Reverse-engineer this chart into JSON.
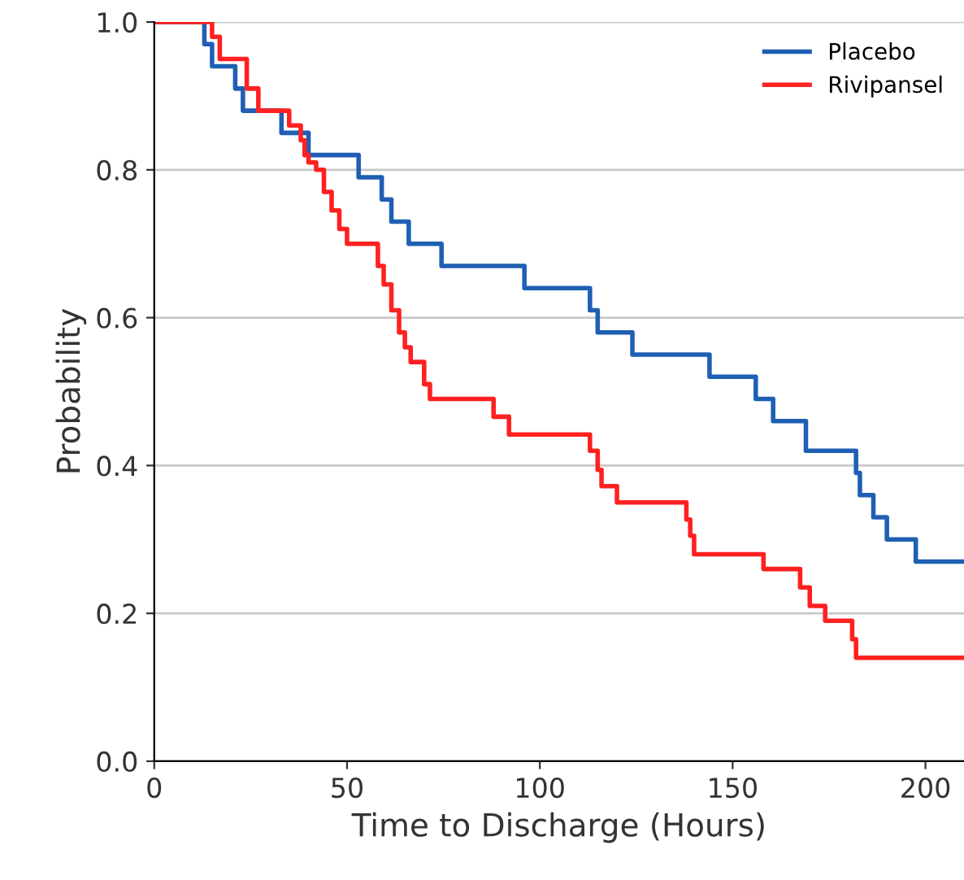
{
  "chart_data": {
    "type": "step",
    "xlabel": "Time to Discharge (Hours)",
    "ylabel": "Probability",
    "xlim": [
      0,
      210
    ],
    "xticks": [
      0,
      50,
      100,
      150,
      200
    ],
    "ylim": [
      0,
      1
    ],
    "yticks": [
      {
        "value": 0,
        "label": "0.0"
      },
      0.2,
      0.4,
      0.6,
      0.8,
      {
        "value": 1,
        "label": "1.0"
      }
    ],
    "grid": "y",
    "legend": "top right",
    "line_style": "solid",
    "marker": "none",
    "series": [
      {
        "name": "Placebo",
        "color": "#1f5fb4",
        "x": [
          0,
          13,
          15,
          21,
          23,
          33,
          40,
          53,
          59,
          61.5,
          66,
          74.5,
          96,
          113,
          115,
          124,
          144,
          156,
          160.5,
          169,
          182,
          183,
          186.5,
          190,
          197.5,
          210
        ],
        "values": [
          1.0,
          0.97,
          0.94,
          0.91,
          0.88,
          0.85,
          0.82,
          0.79,
          0.76,
          0.73,
          0.7,
          0.67,
          0.64,
          0.61,
          0.58,
          0.55,
          0.52,
          0.49,
          0.46,
          0.42,
          0.39,
          0.36,
          0.33,
          0.3,
          0.27,
          0.27
        ]
      },
      {
        "name": "Rivipansel",
        "color": "#ff2020",
        "x": [
          0,
          15,
          17,
          24,
          27,
          35,
          38,
          39,
          40,
          42,
          44,
          46,
          48,
          50,
          58,
          59.5,
          61.5,
          63.5,
          65,
          66.5,
          70,
          71.5,
          88,
          92,
          113,
          115,
          116,
          120,
          138,
          139,
          140,
          158,
          167.5,
          170,
          174,
          181,
          182,
          210
        ],
        "values": [
          1.0,
          0.98,
          0.95,
          0.91,
          0.88,
          0.86,
          0.84,
          0.82,
          0.81,
          0.8,
          0.77,
          0.745,
          0.72,
          0.7,
          0.67,
          0.645,
          0.61,
          0.58,
          0.56,
          0.54,
          0.51,
          0.49,
          0.466,
          0.442,
          0.42,
          0.394,
          0.372,
          0.35,
          0.327,
          0.305,
          0.28,
          0.26,
          0.235,
          0.21,
          0.19,
          0.165,
          0.14,
          0.14
        ]
      }
    ]
  }
}
